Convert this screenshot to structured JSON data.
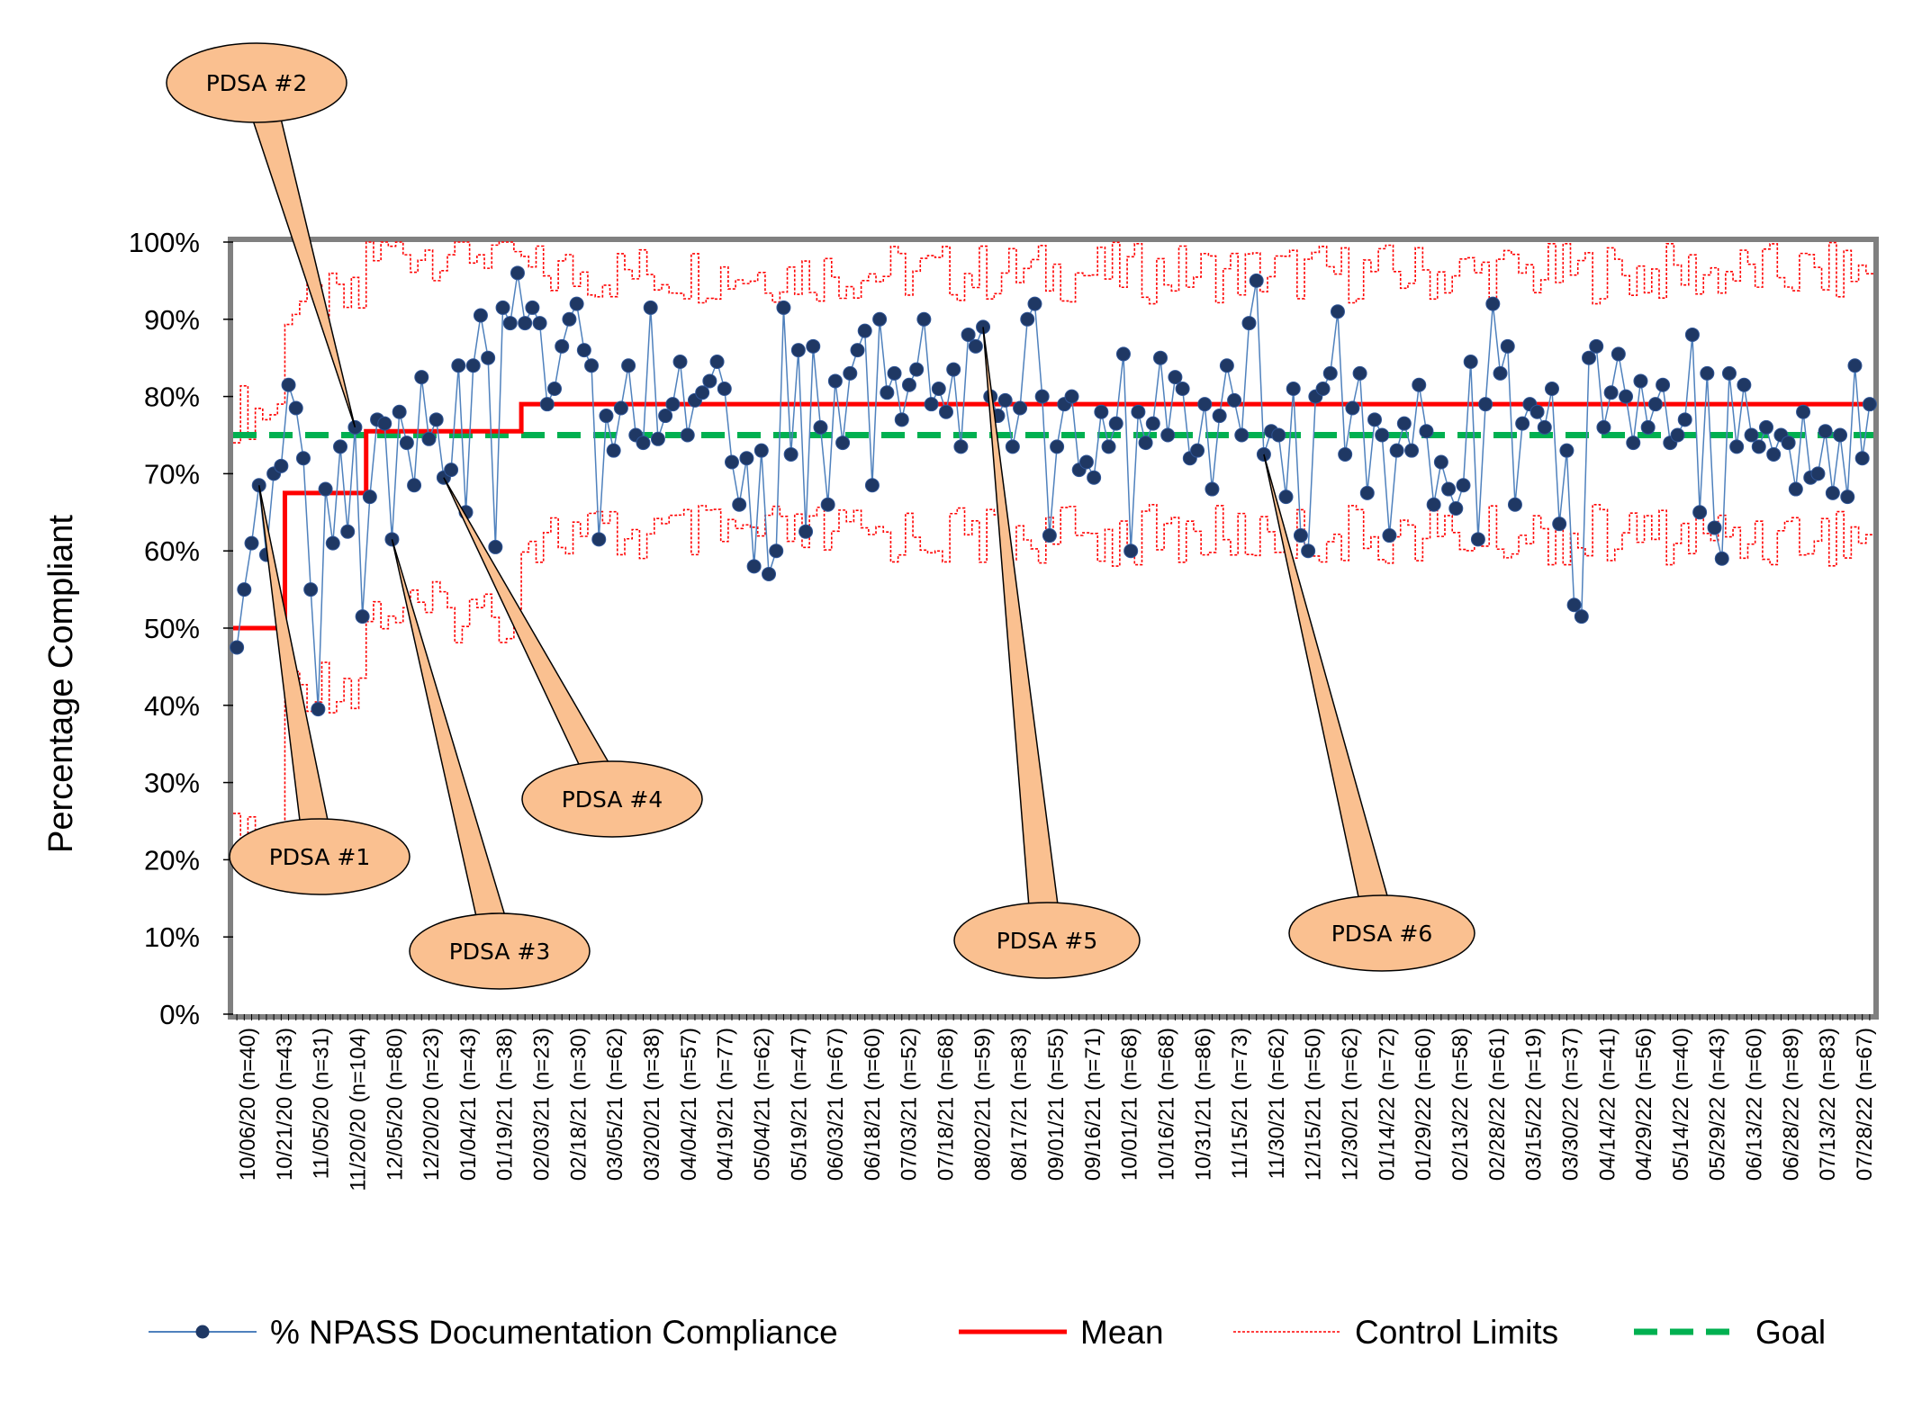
{
  "chart_data": {
    "type": "line",
    "ylabel": "Percentage Compliant",
    "xlabel": "",
    "ylim": [
      0,
      100
    ],
    "yticks": [
      "0%",
      "10%",
      "20%",
      "30%",
      "40%",
      "50%",
      "60%",
      "70%",
      "80%",
      "90%",
      "100%"
    ],
    "x_tick_labels": [
      "10/06/20 (n=40)",
      "10/21/20 (n=43)",
      "11/05/20 (n=31)",
      "11/20/20 (n=104)",
      "12/05/20 (n=80)",
      "12/20/20 (n=23)",
      "01/04/21 (n=43)",
      "01/19/21 (n=38)",
      "02/03/21 (n=23)",
      "02/18/21 (n=30)",
      "03/05/21 (n=62)",
      "03/20/21 (n=38)",
      "04/04/21 (n=57)",
      "04/19/21 (n=77)",
      "05/04/21 (n=62)",
      "05/19/21 (n=47)",
      "06/03/21 (n=67)",
      "06/18/21 (n=60)",
      "07/03/21 (n=52)",
      "07/18/21 (n=68)",
      "08/02/21 (n=59)",
      "08/17/21 (n=83)",
      "09/01/21 (n=55)",
      "09/16/21 (n=71)",
      "10/01/21 (n=68)",
      "10/16/21 (n=68)",
      "10/31/21 (n=86)",
      "11/15/21 (n=73)",
      "11/30/21 (n=62)",
      "12/15/21 (n=50)",
      "12/30/21 (n=62)",
      "01/14/22 (n=72)",
      "01/29/22 (n=60)",
      "02/13/22 (n=58)",
      "02/28/22 (n=61)",
      "03/15/22 (n=19)",
      "03/30/22 (n=37)",
      "04/14/22 (n=41)",
      "04/29/22 (n=56)",
      "05/14/22 (n=40)",
      "05/29/22 (n=43)",
      "06/13/22 (n=60)",
      "06/28/22 (n=89)",
      "07/13/22 (n=83)",
      "07/28/22 (n=67)"
    ],
    "series": [
      {
        "name": "% NPASS Documentation Compliance",
        "color": "#1F3864",
        "values": [
          47.5,
          55,
          61,
          68.5,
          59.5,
          70,
          71,
          81.5,
          78.5,
          72,
          55,
          39.5,
          68,
          61,
          73.5,
          62.5,
          76,
          51.5,
          67,
          77,
          76.5,
          61.5,
          78,
          74,
          68.5,
          82.5,
          74.5,
          77,
          69.5,
          70.5,
          84,
          65,
          84,
          90.5,
          85,
          60.5,
          91.5,
          89.5,
          96,
          89.5,
          91.5,
          89.5,
          79,
          81,
          86.5,
          90,
          92,
          86,
          84,
          61.5,
          77.5,
          73,
          78.5,
          84,
          75,
          74,
          91.5,
          74.5,
          77.5,
          79,
          84.5,
          75,
          79.5,
          80.5,
          82,
          84.5,
          81,
          71.5,
          66,
          72,
          58,
          73,
          57,
          60,
          91.5,
          72.5,
          86,
          62.5,
          86.5,
          76,
          66,
          82,
          74,
          83,
          86,
          88.5,
          68.5,
          90,
          80.5,
          83,
          77,
          81.5,
          83.5,
          90,
          79,
          81,
          78,
          83.5,
          73.5,
          88,
          86.5,
          89,
          80,
          77.5,
          79.5,
          73.5,
          78.5,
          90,
          92,
          80,
          62,
          73.5,
          79,
          80,
          70.5,
          71.5,
          69.5,
          78,
          73.5,
          76.5,
          85.5,
          60,
          78,
          74,
          76.5,
          85,
          75,
          82.5,
          81,
          72,
          73,
          79,
          68,
          77.5,
          84,
          79.5,
          75,
          89.5,
          95,
          72.5,
          75.5,
          75,
          67,
          81,
          62,
          60,
          80,
          81,
          83,
          91,
          72.5,
          78.5,
          83,
          67.5,
          77,
          75,
          62,
          73,
          76.5,
          73,
          81.5,
          75.5,
          66,
          71.5,
          68,
          65.5,
          68.5,
          84.5,
          61.5,
          79,
          92,
          83,
          86.5,
          66,
          76.5,
          79,
          78,
          76,
          81,
          63.5,
          73,
          53,
          51.5,
          85,
          86.5,
          76,
          80.5,
          85.5,
          80,
          74,
          82,
          76,
          79,
          81.5,
          74,
          75,
          77,
          88,
          65,
          83,
          63,
          59,
          83,
          73.5,
          81.5,
          75,
          73.5,
          76,
          72.5,
          75,
          74,
          68,
          78,
          69.5,
          70,
          75.5,
          67.5,
          75,
          67,
          84,
          72,
          79
        ]
      },
      {
        "name": "Mean",
        "color": "#FF0000",
        "segments": [
          {
            "from": 0,
            "to": 7,
            "value": 50
          },
          {
            "from": 7,
            "to": 18,
            "value": 67.5
          },
          {
            "from": 18,
            "to": 27,
            "value": 75.5
          },
          {
            "from": 27,
            "to": 39,
            "value": 75.5
          },
          {
            "from": 39,
            "to": 238,
            "value": 79
          }
        ]
      },
      {
        "name": "Control Limits",
        "color": "#FF0000",
        "limits_per_phase": [
          {
            "from": 0,
            "to": 7,
            "ucl": 78,
            "lcl": 22
          },
          {
            "from": 7,
            "to": 18,
            "ucl": 92,
            "lcl": 43
          },
          {
            "from": 18,
            "to": 39,
            "ucl": 99,
            "lcl": 52
          },
          {
            "from": 39,
            "to": 238,
            "ucl": 96,
            "lcl": 62
          }
        ]
      },
      {
        "name": "Goal",
        "color": "#00B050",
        "values_constant": 75
      }
    ],
    "legend": {
      "placement": "bottom",
      "items": [
        {
          "label": "% NPASS Documentation Compliance",
          "style": "line-marker",
          "color": "#1F3864"
        },
        {
          "label": "Mean",
          "style": "solid",
          "color": "#FF0000"
        },
        {
          "label": "Control Limits",
          "style": "dotted",
          "color": "#FF0000"
        },
        {
          "label": "Goal",
          "style": "dashed",
          "color": "#00B050"
        }
      ]
    },
    "annotations": [
      {
        "label": "PDSA #1",
        "point_index": 3
      },
      {
        "label": "PDSA #2",
        "point_index": 16
      },
      {
        "label": "PDSA #3",
        "point_index": 21
      },
      {
        "label": "PDSA #4",
        "point_index": 28
      },
      {
        "label": "PDSA #5",
        "point_index": 101
      },
      {
        "label": "PDSA #6",
        "point_index": 139
      }
    ],
    "callout_colors": {
      "fill": "#FAC090",
      "stroke": "#000000"
    }
  }
}
